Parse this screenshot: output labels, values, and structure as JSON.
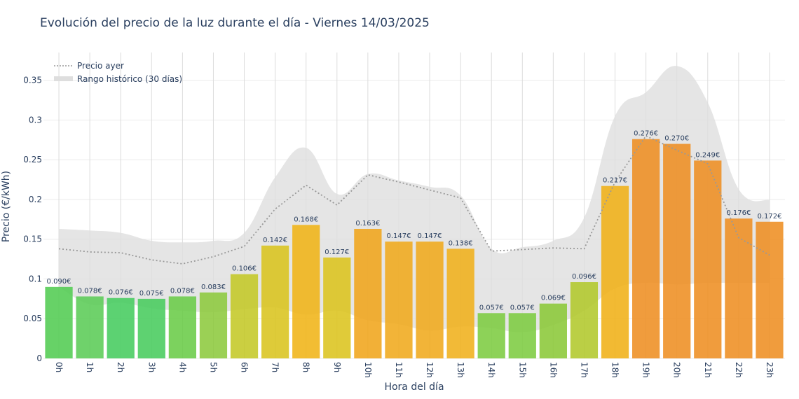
{
  "chart_data": {
    "type": "bar",
    "title": "Evolución del precio de la luz durante el día - Viernes 14/03/2025",
    "xlabel": "Hora del día",
    "ylabel": "Precio (€/kWh)",
    "ylim": [
      0,
      0.385
    ],
    "yticks": [
      "0",
      "0.05",
      "0.1",
      "0.15",
      "0.2",
      "0.25",
      "0.3",
      "0.35"
    ],
    "ytick_values": [
      0,
      0.05,
      0.1,
      0.15,
      0.2,
      0.25,
      0.3,
      0.35
    ],
    "grid": true,
    "legend_position": "top-left",
    "categories": [
      "0h",
      "1h",
      "2h",
      "3h",
      "4h",
      "5h",
      "6h",
      "7h",
      "8h",
      "9h",
      "10h",
      "11h",
      "12h",
      "13h",
      "14h",
      "15h",
      "16h",
      "17h",
      "18h",
      "19h",
      "20h",
      "21h",
      "22h",
      "23h"
    ],
    "values": [
      0.09,
      0.078,
      0.076,
      0.075,
      0.078,
      0.083,
      0.106,
      0.142,
      0.168,
      0.127,
      0.163,
      0.147,
      0.147,
      0.138,
      0.057,
      0.057,
      0.069,
      0.096,
      0.217,
      0.276,
      0.27,
      0.249,
      0.176,
      0.172
    ],
    "bar_labels": [
      "0.090€",
      "0.078€",
      "0.076€",
      "0.075€",
      "0.078€",
      "0.083€",
      "0.106€",
      "0.142€",
      "0.168€",
      "0.127€",
      "0.163€",
      "0.147€",
      "0.147€",
      "0.138€",
      "0.057€",
      "0.057€",
      "0.069€",
      "0.096€",
      "0.217€",
      "0.276€",
      "0.270€",
      "0.249€",
      "0.176€",
      "0.172€"
    ],
    "bar_colors": [
      "#52cc52",
      "#5bcc57",
      "#45cc5e",
      "#48cc5d",
      "#6acc48",
      "#8dca3d",
      "#c4c827",
      "#d9c41e",
      "#f0b417",
      "#dcc41e",
      "#f0a51b",
      "#f0aa1c",
      "#f0aa1c",
      "#f0b01b",
      "#7dcc41",
      "#7dcc41",
      "#8bc838",
      "#b2c82b",
      "#f0b017",
      "#ee8e22",
      "#ee8e22",
      "#ee8e22",
      "#ee8e22",
      "#ee8e22"
    ],
    "series": [
      {
        "name": "Precio ayer",
        "type": "line",
        "style": "dotted",
        "color": "#999999",
        "values": [
          0.138,
          0.134,
          0.133,
          0.124,
          0.119,
          0.128,
          0.141,
          0.188,
          0.218,
          0.193,
          0.231,
          0.222,
          0.212,
          0.202,
          0.135,
          0.137,
          0.139,
          0.138,
          0.222,
          0.28,
          0.262,
          0.245,
          0.152,
          0.13
        ]
      },
      {
        "name": "Rango histórico (30 días)",
        "type": "band",
        "color": "#dedede",
        "upper": [
          0.163,
          0.161,
          0.158,
          0.148,
          0.146,
          0.148,
          0.158,
          0.228,
          0.265,
          0.207,
          0.232,
          0.224,
          0.216,
          0.205,
          0.138,
          0.14,
          0.148,
          0.177,
          0.305,
          0.335,
          0.368,
          0.322,
          0.213,
          0.199
        ],
        "lower": [
          0.09,
          0.068,
          0.07,
          0.063,
          0.06,
          0.058,
          0.062,
          0.064,
          0.055,
          0.06,
          0.048,
          0.043,
          0.035,
          0.04,
          0.038,
          0.033,
          0.042,
          0.06,
          0.088,
          0.095,
          0.093,
          0.095,
          0.095,
          0.095
        ]
      }
    ]
  }
}
